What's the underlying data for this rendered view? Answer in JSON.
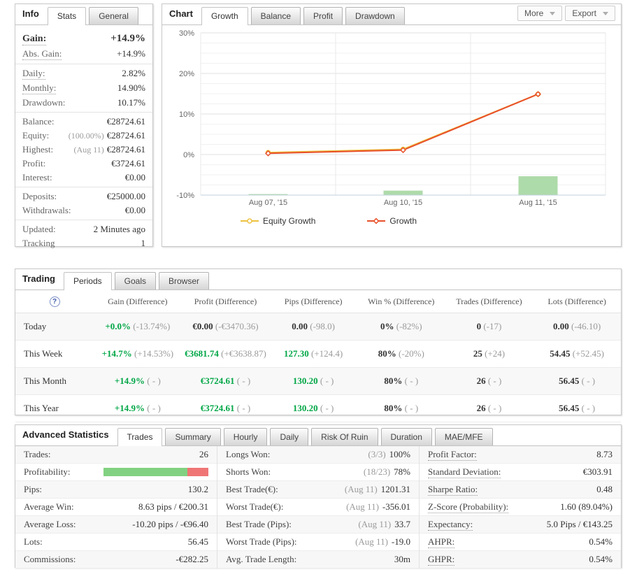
{
  "colors": {
    "green_text": "#00a646",
    "gray_note": "#9b9b9b",
    "growth_line": "#e8502a",
    "equity_line": "#edc240",
    "bar_green": "#aedbaa",
    "profit_bar_green": "#82d182",
    "profit_bar_red": "#ef7575"
  },
  "info_panel": {
    "title": "Info",
    "tabs": [
      {
        "label": "Stats",
        "active": true
      },
      {
        "label": "General",
        "active": false
      }
    ],
    "sections": [
      {
        "rows": [
          {
            "label": "Gain:",
            "value": "+14.9%",
            "value_class": "green",
            "bold": true,
            "dotted": true
          },
          {
            "label": "Abs. Gain:",
            "value": "+14.9%",
            "value_class": "green",
            "dotted": true
          }
        ]
      },
      {
        "rows": [
          {
            "label": "Daily:",
            "value": "2.82%",
            "dotted": true
          },
          {
            "label": "Monthly:",
            "value": "14.90%",
            "dotted": true
          },
          {
            "label": "Drawdown:",
            "value": "10.17%"
          }
        ]
      },
      {
        "rows": [
          {
            "label": "Balance:",
            "value": "€28724.61"
          },
          {
            "label": "Equity:",
            "note": "(100.00%)",
            "value": "€28724.61"
          },
          {
            "label": "Highest:",
            "note": "(Aug 11)",
            "value": "€28724.61"
          },
          {
            "label": "Profit:",
            "value": "€3724.61",
            "value_class": "green"
          },
          {
            "label": "Interest:",
            "value": "€0.00"
          }
        ]
      },
      {
        "rows": [
          {
            "label": "Deposits:",
            "value": "€25000.00"
          },
          {
            "label": "Withdrawals:",
            "value": "€0.00"
          }
        ]
      },
      {
        "rows": [
          {
            "label": "Updated:",
            "value": "2 Minutes ago"
          },
          {
            "label": "Tracking",
            "value": "1"
          }
        ]
      }
    ]
  },
  "chart_panel": {
    "title": "Chart",
    "tabs": [
      {
        "label": "Growth",
        "active": true
      },
      {
        "label": "Balance",
        "active": false
      },
      {
        "label": "Profit",
        "active": false
      },
      {
        "label": "Drawdown",
        "active": false
      }
    ],
    "buttons": [
      {
        "label": "More"
      },
      {
        "label": "Export"
      }
    ]
  },
  "chart_data": {
    "type": "line",
    "title": "Growth",
    "x_labels": [
      "Aug 07, '15",
      "Aug 10, '15",
      "Aug 11, '15"
    ],
    "ylim": [
      -10,
      30
    ],
    "y_ticks": [
      30,
      20,
      10,
      0,
      -10
    ],
    "y_tick_suffix": "%",
    "grid": true,
    "legend_position": "bottom",
    "series": [
      {
        "name": "Equity Growth",
        "color": "#edc240",
        "marker": "circle",
        "values": [
          0.5,
          1.3,
          14.9
        ]
      },
      {
        "name": "Growth",
        "color": "#e8502a",
        "marker": "diamond",
        "values": [
          0.3,
          1.1,
          14.9
        ]
      }
    ],
    "bars": {
      "name": "Daily volume",
      "color": "#aedbaa",
      "baseline": -10,
      "values": [
        0.25,
        1.1,
        4.65
      ]
    }
  },
  "trading_panel": {
    "title": "Trading",
    "help_icon": "?",
    "tabs": [
      {
        "label": "Periods",
        "active": true
      },
      {
        "label": "Goals",
        "active": false
      },
      {
        "label": "Browser",
        "active": false
      }
    ],
    "columns": [
      "Gain (Difference)",
      "Profit (Difference)",
      "Pips (Difference)",
      "Win % (Difference)",
      "Trades (Difference)",
      "Lots (Difference)"
    ],
    "rows": [
      {
        "label": "Today",
        "cells": [
          {
            "main": "+0.0%",
            "color": "green",
            "diff": "(-13.74%)"
          },
          {
            "main": "€0.00",
            "color": "dark",
            "diff": "(-€3470.36)"
          },
          {
            "main": "0.00",
            "color": "dark",
            "diff": "(-98.0)"
          },
          {
            "main": "0%",
            "color": "dark",
            "diff": "(-82%)"
          },
          {
            "main": "0",
            "color": "dark",
            "diff": "(-17)"
          },
          {
            "main": "0.00",
            "color": "dark",
            "diff": "(-46.10)"
          }
        ]
      },
      {
        "label": "This Week",
        "cells": [
          {
            "main": "+14.7%",
            "color": "green",
            "diff": "(+14.53%)"
          },
          {
            "main": "€3681.74",
            "color": "green",
            "diff": "(+€3638.87)"
          },
          {
            "main": "127.30",
            "color": "green",
            "diff": "(+124.4)"
          },
          {
            "main": "80%",
            "color": "dark",
            "diff": "(-20%)"
          },
          {
            "main": "25",
            "color": "dark",
            "diff": "(+24)"
          },
          {
            "main": "54.45",
            "color": "dark",
            "diff": "(+52.45)"
          }
        ]
      },
      {
        "label": "This Month",
        "cells": [
          {
            "main": "+14.9%",
            "color": "green",
            "diff": "( - )"
          },
          {
            "main": "€3724.61",
            "color": "green",
            "diff": "( - )"
          },
          {
            "main": "130.20",
            "color": "green",
            "diff": "( - )"
          },
          {
            "main": "80%",
            "color": "dark",
            "diff": "( - )"
          },
          {
            "main": "26",
            "color": "dark",
            "diff": "( - )"
          },
          {
            "main": "56.45",
            "color": "dark",
            "diff": "( - )"
          }
        ]
      },
      {
        "label": "This Year",
        "cells": [
          {
            "main": "+14.9%",
            "color": "green",
            "diff": "( - )"
          },
          {
            "main": "€3724.61",
            "color": "green",
            "diff": "( - )"
          },
          {
            "main": "130.20",
            "color": "green",
            "diff": "( - )"
          },
          {
            "main": "80%",
            "color": "dark",
            "diff": "( - )"
          },
          {
            "main": "26",
            "color": "dark",
            "diff": "( - )"
          },
          {
            "main": "56.45",
            "color": "dark",
            "diff": "( - )"
          }
        ]
      }
    ]
  },
  "advanced_panel": {
    "title": "Advanced Statistics",
    "tabs": [
      {
        "label": "Trades",
        "active": true
      },
      {
        "label": "Summary",
        "active": false
      },
      {
        "label": "Hourly",
        "active": false
      },
      {
        "label": "Daily",
        "active": false
      },
      {
        "label": "Risk Of Ruin",
        "active": false
      },
      {
        "label": "Duration",
        "active": false
      },
      {
        "label": "MAE/MFE",
        "active": false
      }
    ],
    "columns": [
      [
        {
          "label": "Trades:",
          "value": "26"
        },
        {
          "label": "Profitability:",
          "type": "bar",
          "bar": {
            "green_pct": 80,
            "red_pct": 20
          }
        },
        {
          "label": "Pips:",
          "value": "130.2"
        },
        {
          "label": "Average Win:",
          "value": "8.63 pips / €200.31"
        },
        {
          "label": "Average Loss:",
          "value": "-10.20 pips / -€96.40"
        },
        {
          "label": "Lots:",
          "value": "56.45"
        },
        {
          "label": "Commissions:",
          "value": "-€282.25"
        }
      ],
      [
        {
          "label": "Longs Won:",
          "note": "(3/3)",
          "value": "100%"
        },
        {
          "label": "Shorts Won:",
          "note": "(18/23)",
          "value": "78%"
        },
        {
          "label": "Best Trade(€):",
          "note": "(Aug 11)",
          "value": "1201.31"
        },
        {
          "label": "Worst Trade(€):",
          "note": "(Aug 11)",
          "value": "-356.01"
        },
        {
          "label": "Best Trade (Pips):",
          "note": "(Aug 11)",
          "value": "33.7"
        },
        {
          "label": "Worst Trade (Pips):",
          "note": "(Aug 11)",
          "value": "-19.0"
        },
        {
          "label": "Avg. Trade Length:",
          "value": "30m"
        }
      ],
      [
        {
          "label": "Profit Factor:",
          "value": "8.73",
          "dotted": true
        },
        {
          "label": "Standard Deviation:",
          "value": "€303.91",
          "dotted": true
        },
        {
          "label": "Sharpe Ratio:",
          "value": "0.48",
          "dotted": true
        },
        {
          "label": "Z-Score (Probability):",
          "value": "1.60 (89.04%)",
          "dotted": true
        },
        {
          "label": "Expectancy:",
          "value": "5.0 Pips / €143.25",
          "dotted": true
        },
        {
          "label": "AHPR:",
          "value": "0.54%",
          "dotted": true
        },
        {
          "label": "GHPR:",
          "value": "0.54%",
          "dotted": true
        }
      ]
    ]
  }
}
